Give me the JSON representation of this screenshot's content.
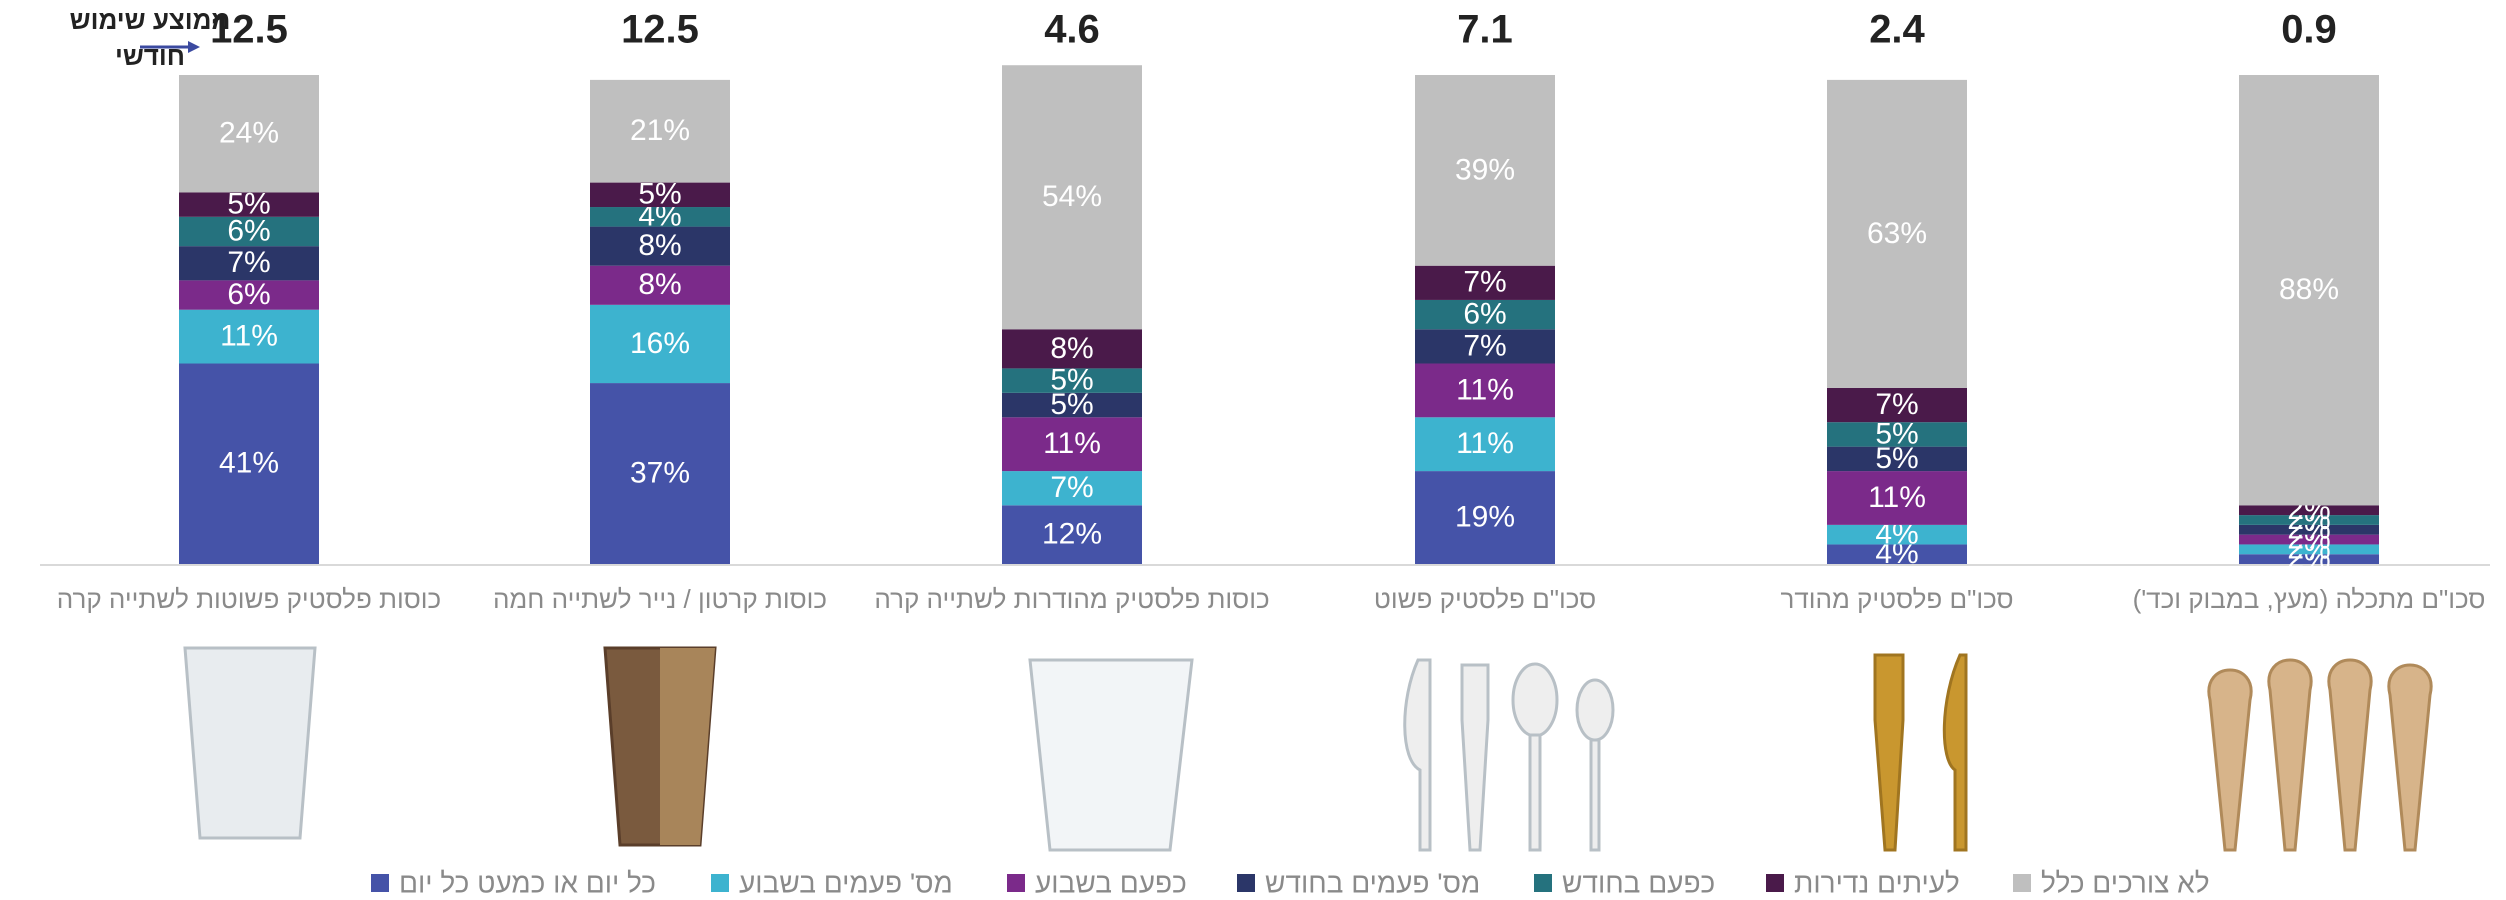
{
  "chart_data": {
    "type": "stacked_bar",
    "average_label": [
      "ממוצע שימוש",
      "חודשי"
    ],
    "categories": [
      "כוסות פלסטיק פשוטות לשתייה קרה",
      "כוסות קרטון / נייר לשתייה חמה",
      "כוסות פלסטיק מהודרות לשתייה קרה",
      "סכו\"ם פלסטיק פשוט",
      "סכו\"ם פלסטיק מהודר",
      "סכו\"ם מתכלה (מעץ, במבוק וכד')"
    ],
    "averages": [
      12.5,
      12.5,
      4.6,
      7.1,
      2.4,
      0.9
    ],
    "ylim": [
      0,
      100
    ],
    "series": [
      {
        "name": "כל יום או כמעט כל יום",
        "color": "#4553a8",
        "values": [
          41,
          37,
          12,
          19,
          4,
          2
        ],
        "value_labels": [
          "41%",
          "37%",
          "12%",
          "19%",
          "4%",
          "2%"
        ]
      },
      {
        "name": "מס' פעמים בשבוע",
        "color": "#3db3cf",
        "values": [
          11,
          16,
          7,
          11,
          4,
          2
        ],
        "value_labels": [
          "11%",
          "16%",
          "7%",
          "11%",
          "4%",
          "2%"
        ]
      },
      {
        "name": "כפעם בשבוע",
        "color": "#7b2a8a",
        "values": [
          6,
          8,
          11,
          11,
          11,
          2
        ],
        "value_labels": [
          "6%",
          "8%",
          "11%",
          "11%",
          "11%",
          "2%"
        ]
      },
      {
        "name": "מס' פעמים בחודש",
        "color": "#2b3668",
        "values": [
          7,
          8,
          5,
          7,
          5,
          2
        ],
        "value_labels": [
          "7%",
          "8%",
          "5%",
          "7%",
          "5%",
          "2%"
        ]
      },
      {
        "name": "כפעם בחודש",
        "color": "#25727e",
        "values": [
          6,
          4,
          5,
          6,
          5,
          2
        ],
        "value_labels": [
          "6%",
          "4%",
          "5%",
          "6%",
          "5%",
          "2%"
        ]
      },
      {
        "name": "לעיתים נדירות",
        "color": "#4a1a4a",
        "values": [
          5,
          5,
          8,
          7,
          7,
          2
        ],
        "value_labels": [
          "5%",
          "5%",
          "8%",
          "7%",
          "7%",
          "2%"
        ]
      },
      {
        "name": "לא צורכים כלל",
        "color": "#bfbfbf",
        "values": [
          24,
          21,
          54,
          39,
          63,
          88
        ],
        "value_labels": [
          "24%",
          "21%",
          "54%",
          "39%",
          "63%",
          "88%"
        ]
      }
    ]
  }
}
